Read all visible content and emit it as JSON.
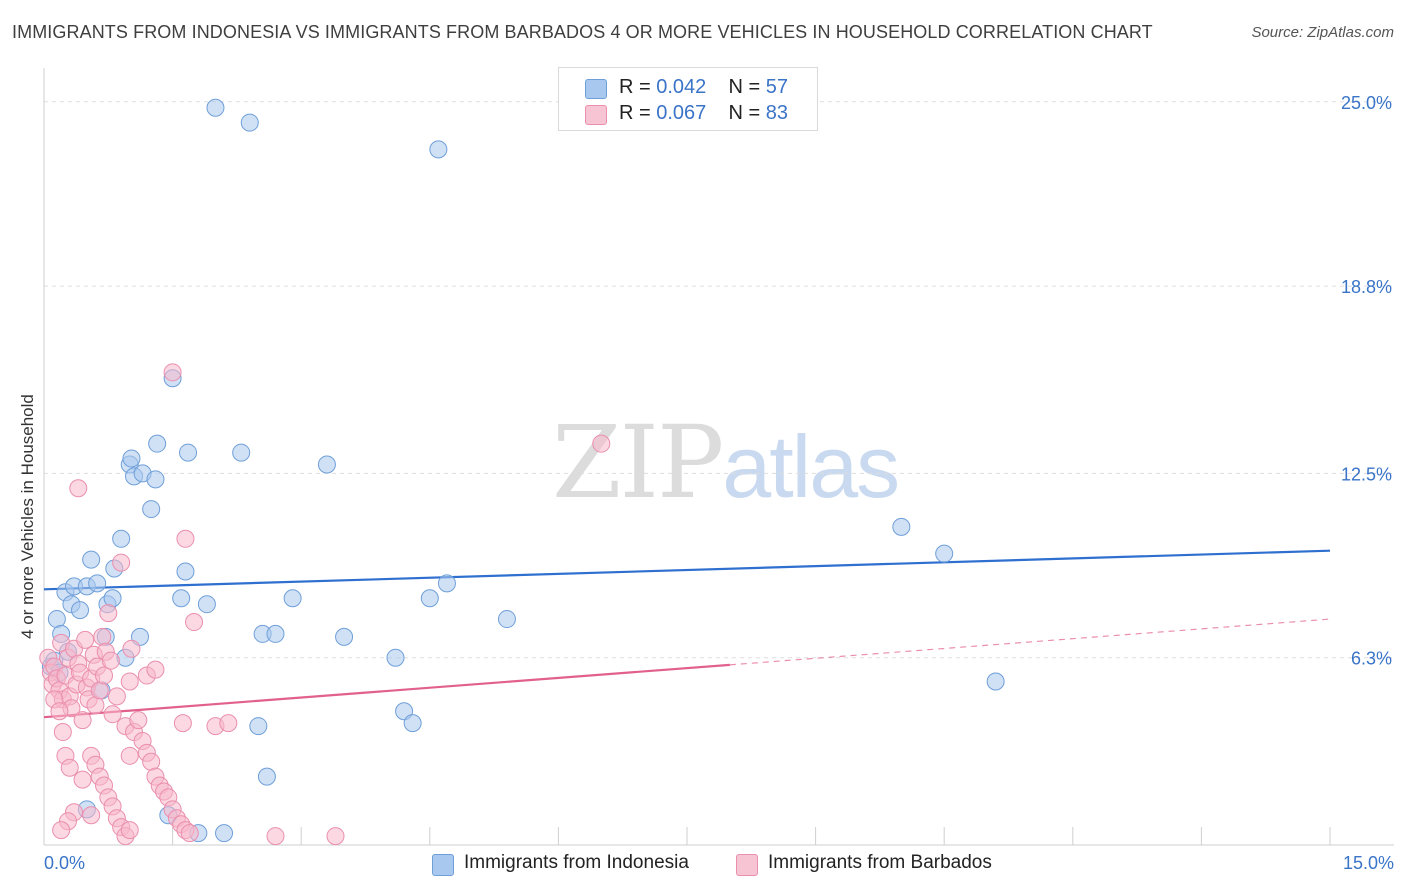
{
  "header": {
    "title": "IMMIGRANTS FROM INDONESIA VS IMMIGRANTS FROM BARBADOS 4 OR MORE VEHICLES IN HOUSEHOLD CORRELATION CHART",
    "source": "Source: ZipAtlas.com"
  },
  "watermark": {
    "zip": "ZIP",
    "atlas": "atlas"
  },
  "legend": {
    "indonesia": {
      "r_label": "R =",
      "r_value": "0.042",
      "n_label": "N =",
      "n_value": "57"
    },
    "barbados": {
      "r_label": "R =",
      "r_value": "0.067",
      "n_label": "N =",
      "n_value": "83"
    }
  },
  "colors": {
    "indonesia_fill": "#a9c8ef",
    "indonesia_stroke": "#6f9fd8",
    "indonesia_line": "#2e6fcf",
    "barbados_fill": "#f7b8cb",
    "barbados_stroke": "#ea8fae",
    "barbados_line": "#e2608d",
    "tick_text": "#3a74c8"
  },
  "chart_data": {
    "type": "scatter",
    "title": "IMMIGRANTS FROM INDONESIA VS IMMIGRANTS FROM BARBADOS 4 OR MORE VEHICLES IN HOUSEHOLD CORRELATION CHART",
    "xlabel": "",
    "ylabel": "4 or more Vehicles in Household",
    "xlim": [
      0,
      15
    ],
    "ylim": [
      0,
      25.8
    ],
    "x_tick_labels": [
      "0.0%",
      "15.0%"
    ],
    "y_ticks": [
      6.3,
      12.5,
      18.8,
      25.0
    ],
    "y_tick_labels": [
      "6.3%",
      "12.5%",
      "18.8%",
      "25.0%"
    ],
    "grid": true,
    "legend_position": "top-center",
    "series": [
      {
        "name": "Immigrants from Indonesia",
        "R": 0.042,
        "N": 57,
        "trend": {
          "x": [
            0,
            15
          ],
          "y": [
            8.6,
            9.9
          ],
          "dashed_from": null
        },
        "points": [
          [
            0.15,
            7.6
          ],
          [
            0.2,
            7.1
          ],
          [
            0.25,
            8.5
          ],
          [
            0.32,
            8.1
          ],
          [
            0.35,
            8.7
          ],
          [
            0.42,
            7.9
          ],
          [
            0.5,
            8.7
          ],
          [
            0.55,
            9.6
          ],
          [
            0.62,
            8.8
          ],
          [
            0.67,
            5.2
          ],
          [
            0.72,
            7.0
          ],
          [
            0.74,
            8.1
          ],
          [
            0.8,
            8.3
          ],
          [
            0.82,
            9.3
          ],
          [
            0.9,
            10.3
          ],
          [
            1.0,
            12.8
          ],
          [
            1.02,
            13.0
          ],
          [
            1.05,
            12.4
          ],
          [
            1.12,
            7.0
          ],
          [
            1.15,
            12.5
          ],
          [
            1.25,
            11.3
          ],
          [
            1.3,
            12.3
          ],
          [
            1.32,
            13.5
          ],
          [
            1.5,
            15.7
          ],
          [
            1.6,
            8.3
          ],
          [
            1.65,
            9.2
          ],
          [
            1.68,
            13.2
          ],
          [
            1.9,
            8.1
          ],
          [
            2.0,
            24.8
          ],
          [
            2.3,
            13.2
          ],
          [
            2.4,
            24.3
          ],
          [
            2.5,
            4.0
          ],
          [
            2.55,
            7.1
          ],
          [
            2.7,
            7.1
          ],
          [
            2.9,
            8.3
          ],
          [
            3.3,
            12.8
          ],
          [
            3.5,
            7.0
          ],
          [
            4.1,
            6.3
          ],
          [
            4.2,
            4.5
          ],
          [
            4.3,
            4.1
          ],
          [
            4.5,
            8.3
          ],
          [
            4.6,
            23.4
          ],
          [
            4.7,
            8.8
          ],
          [
            5.4,
            7.6
          ],
          [
            10.0,
            10.7
          ],
          [
            10.5,
            9.8
          ],
          [
            11.1,
            5.5
          ],
          [
            0.08,
            6.0
          ],
          [
            0.12,
            6.2
          ],
          [
            0.18,
            5.8
          ],
          [
            0.28,
            6.5
          ],
          [
            0.95,
            6.3
          ],
          [
            1.45,
            1.0
          ],
          [
            1.8,
            0.4
          ],
          [
            2.1,
            0.4
          ],
          [
            2.6,
            2.3
          ],
          [
            0.5,
            1.2
          ]
        ]
      },
      {
        "name": "Immigrants from Barbados",
        "R": 0.067,
        "N": 83,
        "trend": {
          "x": [
            0,
            15
          ],
          "y": [
            4.3,
            7.6
          ],
          "dashed_from": 8.0
        },
        "points": [
          [
            0.05,
            6.3
          ],
          [
            0.08,
            5.8
          ],
          [
            0.1,
            5.4
          ],
          [
            0.12,
            6.0
          ],
          [
            0.15,
            5.6
          ],
          [
            0.18,
            5.2
          ],
          [
            0.2,
            6.8
          ],
          [
            0.22,
            4.9
          ],
          [
            0.25,
            5.7
          ],
          [
            0.28,
            6.3
          ],
          [
            0.3,
            5.0
          ],
          [
            0.32,
            4.6
          ],
          [
            0.35,
            6.6
          ],
          [
            0.38,
            5.4
          ],
          [
            0.4,
            6.1
          ],
          [
            0.42,
            5.8
          ],
          [
            0.45,
            4.2
          ],
          [
            0.48,
            6.9
          ],
          [
            0.5,
            5.3
          ],
          [
            0.52,
            4.9
          ],
          [
            0.55,
            5.6
          ],
          [
            0.58,
            6.4
          ],
          [
            0.6,
            4.7
          ],
          [
            0.62,
            6.0
          ],
          [
            0.65,
            5.2
          ],
          [
            0.68,
            7.0
          ],
          [
            0.7,
            5.7
          ],
          [
            0.72,
            6.5
          ],
          [
            0.75,
            7.8
          ],
          [
            0.78,
            6.2
          ],
          [
            0.8,
            4.4
          ],
          [
            0.85,
            5.0
          ],
          [
            0.9,
            9.5
          ],
          [
            0.95,
            4.0
          ],
          [
            1.0,
            5.5
          ],
          [
            1.02,
            6.6
          ],
          [
            1.05,
            3.8
          ],
          [
            1.1,
            4.2
          ],
          [
            1.15,
            3.5
          ],
          [
            1.2,
            3.1
          ],
          [
            1.25,
            2.8
          ],
          [
            1.3,
            2.3
          ],
          [
            1.35,
            2.0
          ],
          [
            1.4,
            1.8
          ],
          [
            1.45,
            1.6
          ],
          [
            1.5,
            1.2
          ],
          [
            1.55,
            0.9
          ],
          [
            1.6,
            0.7
          ],
          [
            1.62,
            4.1
          ],
          [
            1.65,
            0.5
          ],
          [
            1.7,
            0.4
          ],
          [
            1.75,
            7.5
          ],
          [
            0.55,
            3.0
          ],
          [
            0.6,
            2.7
          ],
          [
            0.65,
            2.3
          ],
          [
            0.7,
            2.0
          ],
          [
            0.75,
            1.6
          ],
          [
            0.8,
            1.3
          ],
          [
            0.85,
            0.9
          ],
          [
            0.9,
            0.6
          ],
          [
            0.95,
            0.3
          ],
          [
            0.25,
            3.0
          ],
          [
            0.3,
            2.6
          ],
          [
            0.35,
            1.1
          ],
          [
            0.4,
            12.0
          ],
          [
            1.2,
            5.7
          ],
          [
            1.5,
            15.9
          ],
          [
            1.65,
            10.3
          ],
          [
            2.0,
            4.0
          ],
          [
            2.15,
            4.1
          ],
          [
            2.7,
            0.3
          ],
          [
            3.4,
            0.3
          ],
          [
            6.5,
            13.5
          ],
          [
            0.12,
            4.9
          ],
          [
            0.18,
            4.5
          ],
          [
            0.22,
            3.8
          ],
          [
            0.28,
            0.8
          ],
          [
            0.45,
            2.2
          ],
          [
            0.55,
            1.0
          ],
          [
            1.0,
            0.5
          ],
          [
            1.3,
            5.9
          ],
          [
            0.2,
            0.5
          ],
          [
            1.0,
            3.0
          ]
        ]
      }
    ]
  }
}
